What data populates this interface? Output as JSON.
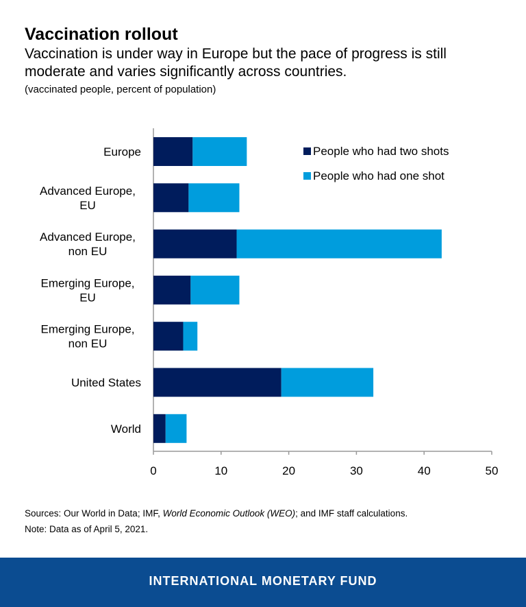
{
  "header": {
    "title": "Vaccination rollout",
    "subtitle": "Vaccination is under way in Europe but the pace of progress is still moderate and varies significantly across countries.",
    "units": "(vaccinated people, percent of population)"
  },
  "chart_data": {
    "type": "bar",
    "orientation": "horizontal",
    "stacked": true,
    "categories": [
      [
        "Europe"
      ],
      [
        "Advanced Europe,",
        "EU"
      ],
      [
        "Advanced Europe,",
        "non EU"
      ],
      [
        "Emerging Europe,",
        "EU"
      ],
      [
        "Emerging Europe,",
        "non EU"
      ],
      [
        "United States"
      ],
      [
        "World"
      ]
    ],
    "series": [
      {
        "name": "People who had two shots",
        "color": "#001c5c",
        "values": [
          5.8,
          5.2,
          12.3,
          5.5,
          4.4,
          18.9,
          1.8
        ]
      },
      {
        "name": "People who had one shot",
        "color": "#009ddd",
        "values": [
          8.0,
          7.5,
          30.3,
          7.2,
          2.1,
          13.6,
          3.1
        ]
      }
    ],
    "xlim": [
      0,
      50
    ],
    "xticks": [
      "0",
      "10",
      "20",
      "30",
      "40",
      "50"
    ],
    "grid": false,
    "legend_placement": "top-right"
  },
  "notes": {
    "sources_prefix": "Sources: Our World in Data; IMF, ",
    "sources_italic": "World Economic Outlook (WEO)",
    "sources_suffix": "; and IMF staff calculations.",
    "note": "Note: Data as of April 5, 2021."
  },
  "footer": {
    "brand": "INTERNATIONAL MONETARY FUND"
  }
}
